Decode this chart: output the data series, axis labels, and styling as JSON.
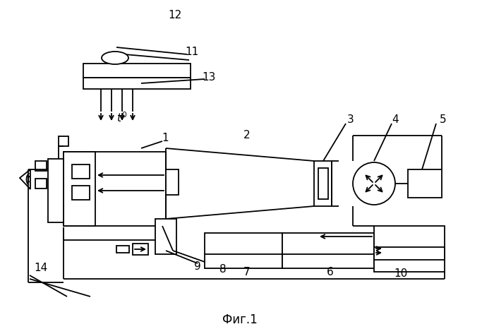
{
  "background_color": "#ffffff",
  "line_color": "#000000",
  "fig_label": "Фиг.1"
}
